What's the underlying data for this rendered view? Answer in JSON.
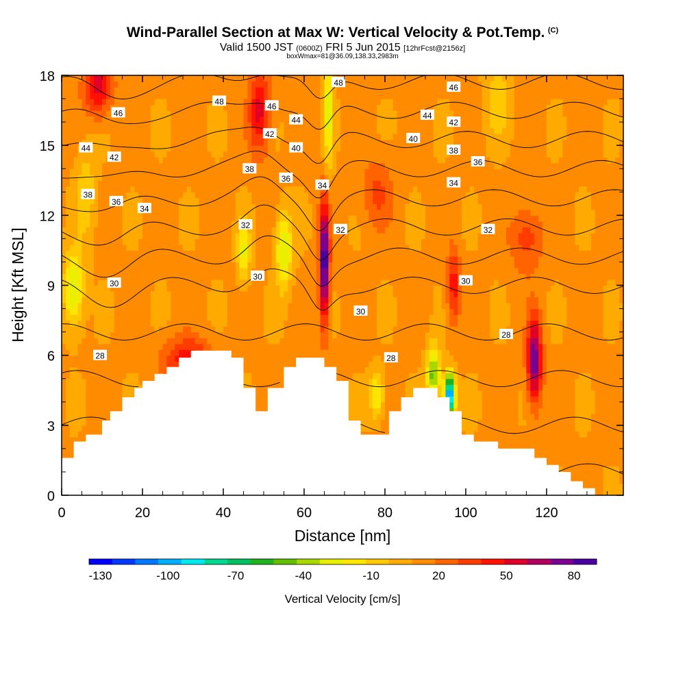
{
  "header": {
    "title": "Wind-Parallel Section at Max W: Vertical Velocity & Pot.Temp.",
    "copyright": "(C)",
    "valid_prefix": "Valid 1500 JST",
    "valid_z": "(0600Z)",
    "valid_date": "FRI 5 Jun 2015",
    "forecast": "[12hrFcst@2156z]",
    "box_info": "boxWmax=81@36.09,138.33,2983m"
  },
  "chart_data": {
    "type": "heatmap",
    "xlabel": "Distance [nm]",
    "ylabel": "Height [Kft MSL]",
    "xlim": [
      0,
      139
    ],
    "ylim": [
      0,
      18
    ],
    "x_ticks": [
      "0",
      "20",
      "40",
      "60",
      "80",
      "100",
      "120"
    ],
    "x_tick_values": [
      0,
      20,
      40,
      60,
      80,
      100,
      120
    ],
    "y_ticks": [
      "0",
      "3",
      "6",
      "9",
      "12",
      "15",
      "18"
    ],
    "y_tick_values": [
      0,
      3,
      6,
      9,
      12,
      15,
      18
    ],
    "colorbar": {
      "title": "Vertical Velocity [cm/s]",
      "labels": [
        "-130",
        "-100",
        "-70",
        "-40",
        "-10",
        "20",
        "50",
        "80"
      ],
      "label_values": [
        -130,
        -100,
        -70,
        -40,
        -10,
        20,
        50,
        80
      ],
      "min": -135,
      "max": 90,
      "colors": [
        "#0000ff",
        "#0038ff",
        "#0078ff",
        "#00b0ff",
        "#00e8f0",
        "#00d890",
        "#00c060",
        "#20b020",
        "#60c000",
        "#a8d800",
        "#e8f000",
        "#ffe600",
        "#ffc800",
        "#ffaa00",
        "#ff8c00",
        "#ff6400",
        "#ff3c00",
        "#ff1000",
        "#e00028",
        "#b00060",
        "#7a0090",
        "#4a00a0"
      ]
    },
    "terrain": [
      [
        0,
        1.6
      ],
      [
        3,
        1.6
      ],
      [
        3,
        2.3
      ],
      [
        6,
        2.3
      ],
      [
        6,
        2.6
      ],
      [
        10,
        2.6
      ],
      [
        10,
        3.2
      ],
      [
        12,
        3.2
      ],
      [
        12,
        3.6
      ],
      [
        15,
        3.6
      ],
      [
        15,
        4.2
      ],
      [
        18,
        4.2
      ],
      [
        18,
        4.6
      ],
      [
        20,
        4.6
      ],
      [
        20,
        4.9
      ],
      [
        23,
        4.9
      ],
      [
        23,
        5.2
      ],
      [
        26,
        5.2
      ],
      [
        26,
        5.5
      ],
      [
        29,
        5.5
      ],
      [
        29,
        5.9
      ],
      [
        32,
        5.9
      ],
      [
        32,
        6.2
      ],
      [
        42,
        6.2
      ],
      [
        42,
        5.9
      ],
      [
        45,
        5.9
      ],
      [
        45,
        4.6
      ],
      [
        48,
        4.6
      ],
      [
        48,
        3.6
      ],
      [
        51,
        3.6
      ],
      [
        51,
        4.6
      ],
      [
        55,
        4.6
      ],
      [
        55,
        5.5
      ],
      [
        58,
        5.5
      ],
      [
        58,
        5.9
      ],
      [
        65,
        5.9
      ],
      [
        65,
        5.5
      ],
      [
        68,
        5.5
      ],
      [
        68,
        4.9
      ],
      [
        71,
        4.9
      ],
      [
        71,
        3.2
      ],
      [
        74,
        3.2
      ],
      [
        74,
        2.6
      ],
      [
        81,
        2.6
      ],
      [
        81,
        3.6
      ],
      [
        84,
        3.6
      ],
      [
        84,
        4.2
      ],
      [
        87,
        4.2
      ],
      [
        87,
        4.6
      ],
      [
        93,
        4.6
      ],
      [
        93,
        4.2
      ],
      [
        96,
        4.2
      ],
      [
        96,
        3.6
      ],
      [
        99,
        3.6
      ],
      [
        99,
        2.6
      ],
      [
        102,
        2.6
      ],
      [
        102,
        2.3
      ],
      [
        108,
        2.3
      ],
      [
        108,
        2.0
      ],
      [
        117,
        2.0
      ],
      [
        117,
        1.6
      ],
      [
        120,
        1.6
      ],
      [
        120,
        1.3
      ],
      [
        123,
        1.3
      ],
      [
        123,
        1.0
      ],
      [
        126,
        1.0
      ],
      [
        126,
        0.6
      ],
      [
        129,
        0.6
      ],
      [
        129,
        0.3
      ],
      [
        132,
        0.3
      ],
      [
        132,
        0
      ],
      [
        139,
        0
      ]
    ],
    "updrafts": [
      {
        "x": 65,
        "y": 10,
        "sx": 1.2,
        "sy": 2.6,
        "w": 85
      },
      {
        "x": 117,
        "y": 5.8,
        "sx": 1.8,
        "sy": 1.8,
        "w": 70
      },
      {
        "x": 9,
        "y": 17.6,
        "sx": 3.5,
        "sy": 1.3,
        "w": 45
      },
      {
        "x": 49,
        "y": 16.5,
        "sx": 2.6,
        "sy": 1.8,
        "w": 42
      },
      {
        "x": 31,
        "y": 5.9,
        "sx": 6.0,
        "sy": 0.9,
        "w": 35
      },
      {
        "x": 97,
        "y": 9,
        "sx": 1.6,
        "sy": 1.6,
        "w": 35
      },
      {
        "x": 115,
        "y": 11,
        "sx": 4.0,
        "sy": 1.4,
        "w": 25
      },
      {
        "x": 78,
        "y": 13,
        "sx": 4.0,
        "sy": 1.5,
        "w": 20
      }
    ],
    "downdrafts": [
      {
        "x": 96,
        "y": 4.3,
        "sx": 1.3,
        "sy": 0.9,
        "w": -125
      },
      {
        "x": 92,
        "y": 5.2,
        "sx": 1.6,
        "sy": 1.2,
        "w": -60
      },
      {
        "x": 3,
        "y": 8.8,
        "sx": 2.4,
        "sy": 1.6,
        "w": -45
      },
      {
        "x": 55,
        "y": 10.5,
        "sx": 2.0,
        "sy": 1.6,
        "w": -45
      },
      {
        "x": 45,
        "y": 10.5,
        "sx": 1.5,
        "sy": 1.3,
        "w": -35
      },
      {
        "x": 66,
        "y": 16.5,
        "sx": 1.2,
        "sy": 2.4,
        "w": -40
      },
      {
        "x": 78,
        "y": 4.3,
        "sx": 1.8,
        "sy": 1.0,
        "w": -35
      },
      {
        "x": 6,
        "y": 13,
        "sx": 2.5,
        "sy": 2.0,
        "w": -20
      },
      {
        "x": 108,
        "y": 17,
        "sx": 3.0,
        "sy": 1.6,
        "w": -20
      }
    ],
    "theta_contours": [
      26,
      27,
      28,
      29,
      30,
      31,
      32,
      33,
      34,
      35,
      36,
      37,
      38,
      39,
      40,
      41,
      42,
      43,
      44,
      45,
      46,
      47,
      48
    ],
    "theta_labels": [
      {
        "x": 14,
        "y": 16.4,
        "text": "46"
      },
      {
        "x": 6,
        "y": 14.9,
        "text": "44"
      },
      {
        "x": 13,
        "y": 14.5,
        "text": "42"
      },
      {
        "x": 6.5,
        "y": 12.9,
        "text": "38"
      },
      {
        "x": 13.5,
        "y": 12.6,
        "text": "36"
      },
      {
        "x": 20.5,
        "y": 12.3,
        "text": "34"
      },
      {
        "x": 39,
        "y": 16.9,
        "text": "48"
      },
      {
        "x": 52,
        "y": 16.7,
        "text": "46"
      },
      {
        "x": 58,
        "y": 16.1,
        "text": "44"
      },
      {
        "x": 51.5,
        "y": 15.5,
        "text": "42"
      },
      {
        "x": 58,
        "y": 14.9,
        "text": "40"
      },
      {
        "x": 46.5,
        "y": 14.0,
        "text": "38"
      },
      {
        "x": 55.5,
        "y": 13.6,
        "text": "36"
      },
      {
        "x": 45.5,
        "y": 11.6,
        "text": "32"
      },
      {
        "x": 48.5,
        "y": 9.4,
        "text": "30"
      },
      {
        "x": 68.5,
        "y": 17.7,
        "text": "48"
      },
      {
        "x": 64.5,
        "y": 13.3,
        "text": "34"
      },
      {
        "x": 69,
        "y": 11.4,
        "text": "32"
      },
      {
        "x": 74,
        "y": 7.9,
        "text": "30"
      },
      {
        "x": 81.5,
        "y": 5.9,
        "text": "28"
      },
      {
        "x": 97,
        "y": 17.5,
        "text": "46"
      },
      {
        "x": 90.5,
        "y": 16.3,
        "text": "44"
      },
      {
        "x": 97,
        "y": 16.0,
        "text": "42"
      },
      {
        "x": 87,
        "y": 15.3,
        "text": "40"
      },
      {
        "x": 97,
        "y": 14.8,
        "text": "38"
      },
      {
        "x": 103,
        "y": 14.3,
        "text": "36"
      },
      {
        "x": 97,
        "y": 13.4,
        "text": "34"
      },
      {
        "x": 105.5,
        "y": 11.4,
        "text": "32"
      },
      {
        "x": 100,
        "y": 9.2,
        "text": "30"
      },
      {
        "x": 110,
        "y": 6.9,
        "text": "28"
      },
      {
        "x": 13,
        "y": 9.1,
        "text": "30"
      },
      {
        "x": 9.5,
        "y": 6.0,
        "text": "28"
      }
    ]
  }
}
